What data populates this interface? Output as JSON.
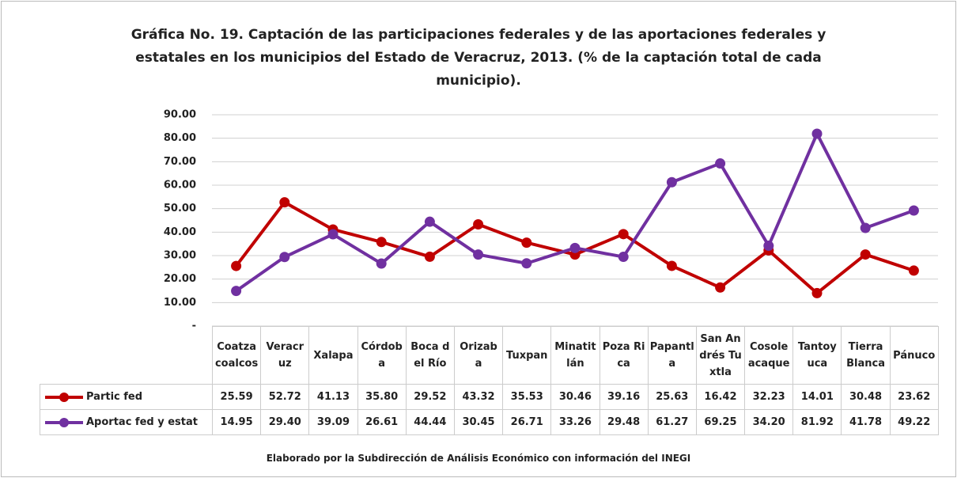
{
  "chart_data": {
    "type": "line",
    "title": "Gráfica No. 19. Captación de las participaciones federales y de las aportaciones federales y estatales en los municipios del Estado de Veracruz, 2013. (% de la captación total de cada municipio).",
    "footnote": "Elaborado por la Subdirección de Análisis Económico con información del INEGI",
    "categories": [
      "Coatzacoalcos",
      "Veracruz",
      "Xalapa",
      "Córdoba",
      "Boca del Río",
      "Orizaba",
      "Tuxpan",
      "Minatitlán",
      "Poza Rica",
      "Papantla",
      "San Andrés Tuxtla",
      "Cosoleacaque",
      "Tantoyuca",
      "Tierra Blanca",
      "Pánuco"
    ],
    "series": [
      {
        "name": "Partic fed",
        "color": "#c00000",
        "values": [
          25.59,
          52.72,
          41.13,
          35.8,
          29.52,
          43.32,
          35.53,
          30.46,
          39.16,
          25.63,
          16.42,
          32.23,
          14.01,
          30.48,
          23.62
        ],
        "value_labels": [
          "25.59",
          "52.72",
          "41.13",
          "35.80",
          "29.52",
          "43.32",
          "35.53",
          "30.46",
          "39.16",
          "25.63",
          "16.42",
          "32.23",
          "14.01",
          "30.48",
          "23.62"
        ]
      },
      {
        "name": "Aportac fed y estat",
        "color": "#7030a0",
        "values": [
          14.95,
          29.4,
          39.09,
          26.61,
          44.44,
          30.45,
          26.71,
          33.26,
          29.48,
          61.27,
          69.25,
          34.2,
          81.92,
          41.78,
          49.22
        ],
        "value_labels": [
          "14.95",
          "29.40",
          "39.09",
          "26.61",
          "44.44",
          "30.45",
          "26.71",
          "33.26",
          "29.48",
          "61.27",
          "69.25",
          "34.20",
          "81.92",
          "41.78",
          "49.22"
        ]
      }
    ],
    "ylim": [
      0,
      90
    ],
    "yticks": [
      {
        "value": 0,
        "label": "-"
      },
      {
        "value": 10,
        "label": "10.00"
      },
      {
        "value": 20,
        "label": "20.00"
      },
      {
        "value": 30,
        "label": "30.00"
      },
      {
        "value": 40,
        "label": "40.00"
      },
      {
        "value": 50,
        "label": "50.00"
      },
      {
        "value": 60,
        "label": "60.00"
      },
      {
        "value": 70,
        "label": "70.00"
      },
      {
        "value": 80,
        "label": "80.00"
      },
      {
        "value": 90,
        "label": "90.00"
      }
    ],
    "grid": true
  }
}
